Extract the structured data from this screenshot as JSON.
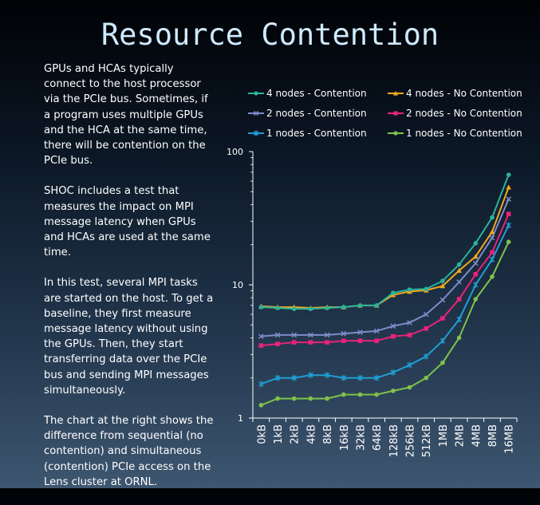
{
  "title": "Resource Contention",
  "paragraphs": [
    "GPUs and HCAs typically connect to the host processor via the PCIe bus.  Sometimes, if a program uses multiple GPUs and the HCA at the same time, there will be contention on the PCIe bus.",
    "SHOC includes a test that measures the impact on MPI message latency when GPUs and HCAs are used at the same time.",
    "In this test, several MPI tasks are started on the host.  To get a baseline, they first measure message latency without using the GPUs.  Then, they start transferring data over the PCIe bus and sending MPI messages simultaneously.",
    "The chart at the right shows the difference from sequential (no contention) and simultaneous (contention) PCIe access on the Lens cluster at ORNL."
  ],
  "chart_data": {
    "type": "line",
    "yscale": "log",
    "ylim": [
      1,
      100
    ],
    "yticks": [
      "1",
      "10",
      "100"
    ],
    "legend_position": "top",
    "categories": [
      "0kB",
      "1kB",
      "2kB",
      "4kB",
      "8kB",
      "16kB",
      "32kB",
      "64kB",
      "128kB",
      "256kB",
      "512kB",
      "1MB",
      "2MB",
      "4MB",
      "8MB",
      "16MB"
    ],
    "series": [
      {
        "name": "4 nodes - Contention",
        "color": "#2bb39a",
        "marker": "circle",
        "values": [
          6.8,
          6.7,
          6.6,
          6.6,
          6.7,
          6.8,
          7.0,
          7.0,
          8.7,
          9.2,
          9.3,
          10.7,
          14.2,
          20.5,
          32.0,
          67.0
        ]
      },
      {
        "name": "4 nodes - No Contention",
        "color": "#f2a91d",
        "marker": "triangle",
        "values": [
          6.9,
          6.8,
          6.8,
          6.7,
          6.8,
          6.8,
          7.0,
          7.0,
          8.4,
          8.9,
          9.1,
          9.8,
          12.8,
          16.3,
          25.0,
          54.0
        ]
      },
      {
        "name": "2 nodes - Contention",
        "color": "#7f8cc9",
        "marker": "x",
        "values": [
          4.1,
          4.2,
          4.2,
          4.2,
          4.2,
          4.3,
          4.4,
          4.5,
          4.9,
          5.2,
          6.0,
          7.7,
          10.5,
          14.5,
          22.5,
          44.0
        ]
      },
      {
        "name": "2 nodes - No Contention",
        "color": "#e8237a",
        "marker": "square",
        "values": [
          3.5,
          3.6,
          3.7,
          3.7,
          3.7,
          3.8,
          3.8,
          3.8,
          4.1,
          4.2,
          4.7,
          5.6,
          7.8,
          12.0,
          17.5,
          34.0
        ]
      },
      {
        "name": "1 nodes - Contention",
        "color": "#1f9fd4",
        "marker": "star",
        "values": [
          1.8,
          2.0,
          2.0,
          2.1,
          2.1,
          2.0,
          2.0,
          2.0,
          2.2,
          2.5,
          2.9,
          3.8,
          5.5,
          10.0,
          15.5,
          28.0
        ]
      },
      {
        "name": "1 nodes - No Contention",
        "color": "#7fc24a",
        "marker": "circle",
        "values": [
          1.25,
          1.4,
          1.4,
          1.4,
          1.4,
          1.5,
          1.5,
          1.5,
          1.6,
          1.7,
          2.0,
          2.6,
          4.0,
          7.8,
          11.5,
          21.0
        ]
      }
    ]
  }
}
